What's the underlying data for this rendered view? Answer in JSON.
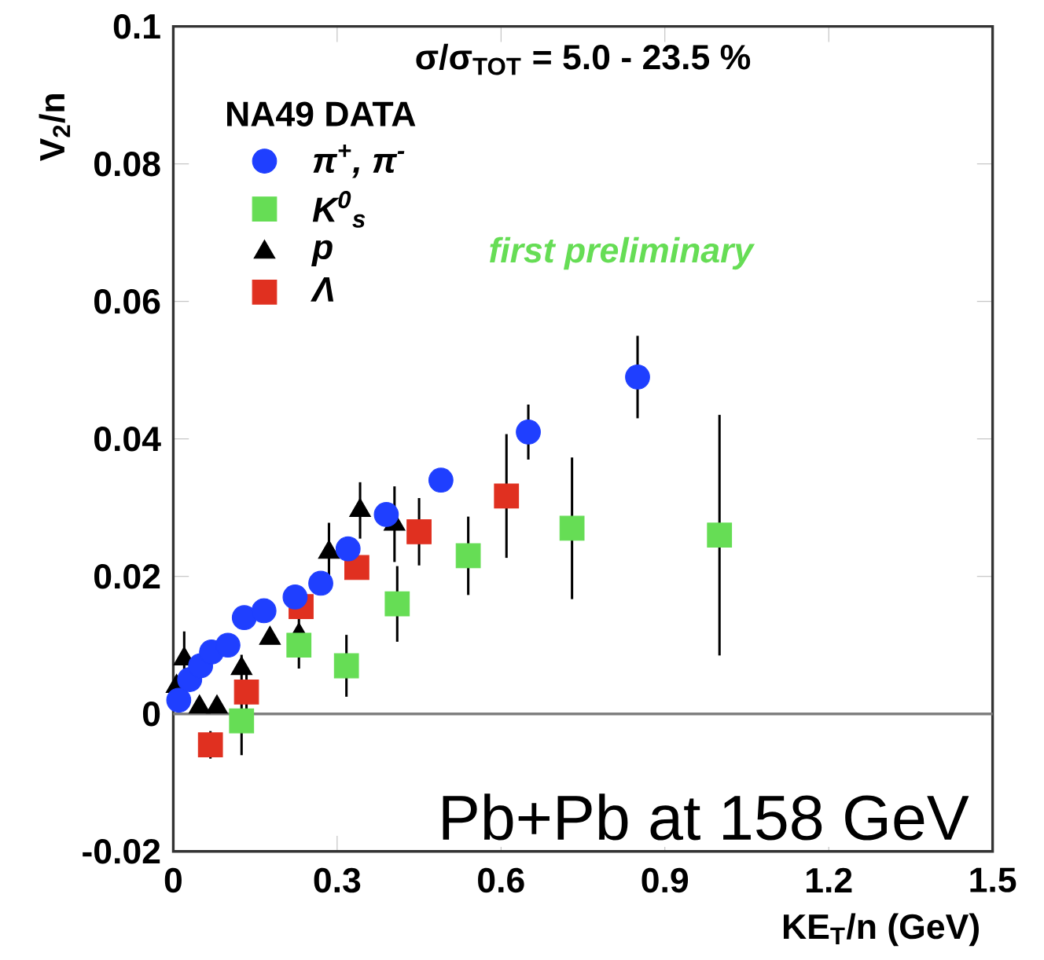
{
  "chart_data": {
    "type": "scatter",
    "xlabel": "KE$_{T}$/n (GeV)",
    "ylabel": "V$_{2}$/n",
    "legend_title": "NA49 DATA",
    "annotations": [
      "σ/σ$_{TOT}$ = 5.0 - 23.5 %",
      "first preliminary",
      "Pb+Pb at 158 GeV"
    ],
    "xlim": [
      0,
      1.5
    ],
    "xticks": [
      0,
      0.3,
      0.6,
      0.9,
      1.2,
      1.5
    ],
    "ylim": [
      -0.02,
      0.1
    ],
    "yticks": [
      -0.02,
      0,
      0.02,
      0.04,
      0.06,
      0.08,
      0.1
    ],
    "legend": "top left",
    "ref_lines": [
      {
        "axis": "y",
        "value": 0,
        "color": "#808080"
      }
    ],
    "series": [
      {
        "name": "π$^{+}$, π$^{-}$",
        "color": "#1f3fff",
        "marker": "circle",
        "x": [
          0.01,
          0.03,
          0.05,
          0.07,
          0.1,
          0.13,
          0.166,
          0.223,
          0.27,
          0.32,
          0.39,
          0.49,
          0.65,
          0.85
        ],
        "values": [
          0.002,
          0.005,
          0.007,
          0.009,
          0.01,
          0.014,
          0.015,
          0.017,
          0.019,
          0.024,
          0.029,
          0.034,
          0.041,
          0.049
        ],
        "errors": [
          null,
          null,
          null,
          null,
          null,
          null,
          null,
          null,
          null,
          null,
          null,
          null,
          0.004,
          0.006
        ]
      },
      {
        "name": "K$^{0}$$_{s}$",
        "color": "#66dd55",
        "marker": "square",
        "x": [
          0.125,
          0.23,
          0.317,
          0.41,
          0.54,
          0.73,
          1.0
        ],
        "values": [
          -0.001,
          0.01,
          0.007,
          0.016,
          0.023,
          0.027,
          0.026
        ],
        "errors": [
          0.005,
          null,
          0.0045,
          0.0055,
          0.0057,
          0.0103,
          0.0175
        ]
      },
      {
        "name": "p",
        "color": "#000000",
        "marker": "triangle",
        "x": [
          0.006,
          0.02,
          0.048,
          0.08,
          0.125,
          0.177,
          0.23,
          0.285,
          0.342,
          0.405
        ],
        "values": [
          0.004,
          0.008,
          0.001,
          0.001,
          0.0066,
          0.011,
          0.0115,
          0.0235,
          0.0296,
          0.0276
        ],
        "errors": [
          null,
          0.004,
          null,
          null,
          0.002,
          null,
          0.0049,
          0.0043,
          0.0041,
          0.0055
        ]
      },
      {
        "name": "Λ",
        "color": "#e03020",
        "marker": "square",
        "x": [
          0.068,
          0.134,
          0.234,
          0.336,
          0.45,
          0.61
        ],
        "values": [
          -0.0045,
          0.0032,
          0.0156,
          0.0213,
          0.0265,
          0.0317
        ],
        "errors": [
          0.002,
          0.003,
          null,
          null,
          0.0049,
          0.009
        ]
      }
    ]
  }
}
